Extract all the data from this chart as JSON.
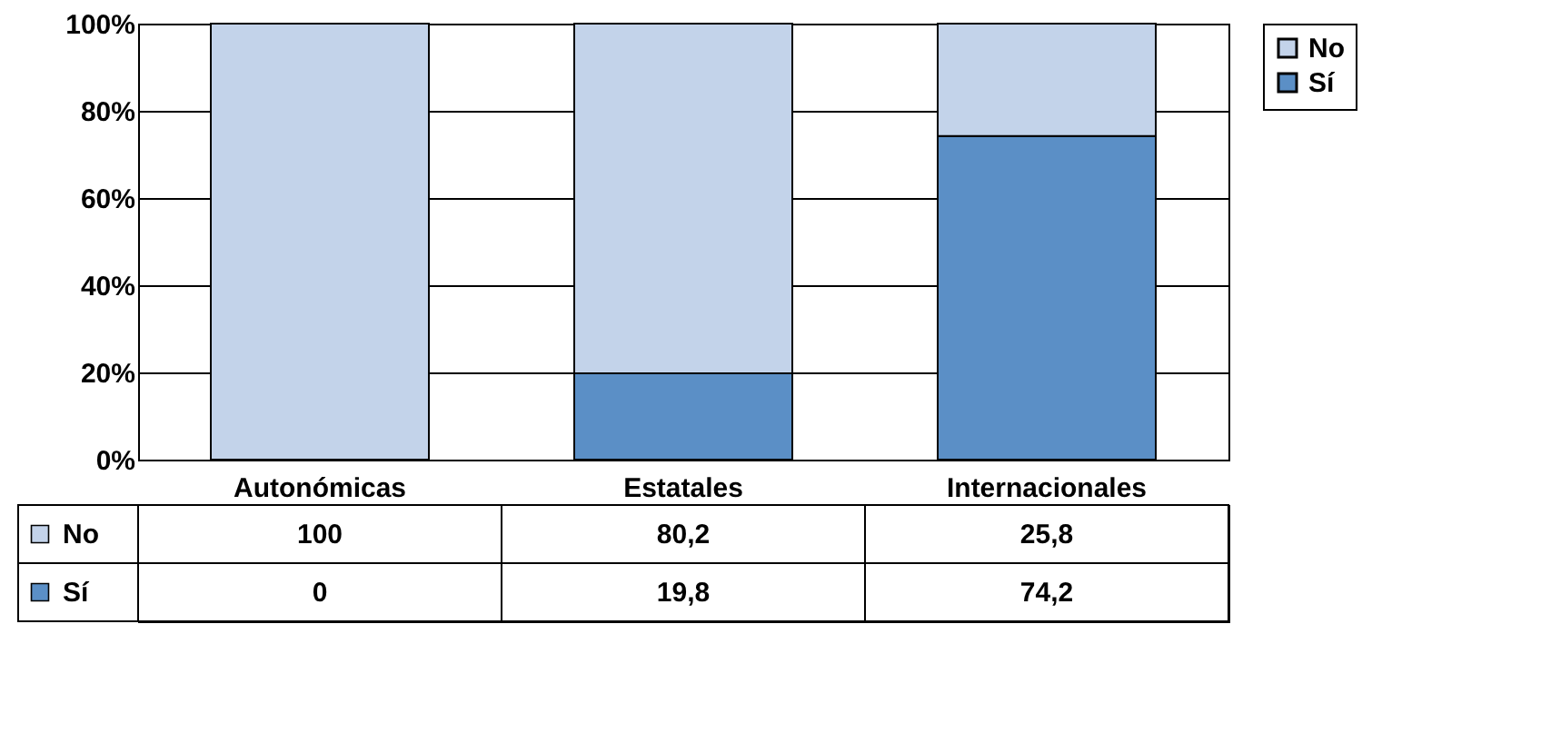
{
  "chart_data": {
    "type": "bar",
    "stacked": true,
    "categories": [
      "Autonómicas",
      "Estatales",
      "Internacionales"
    ],
    "series": [
      {
        "name": "Sí",
        "color": "#5b8fc6",
        "values": [
          0,
          19.8,
          74.2
        ],
        "value_labels": [
          "0",
          "19,8",
          "74,2"
        ]
      },
      {
        "name": "No",
        "color": "#c3d3ea",
        "values": [
          100,
          80.2,
          25.8
        ],
        "value_labels": [
          "100",
          "80,2",
          "25,8"
        ]
      }
    ],
    "ylim": [
      0,
      100
    ],
    "yticks": [
      {
        "value": 0,
        "label": "0%"
      },
      {
        "value": 20,
        "label": "20%"
      },
      {
        "value": 40,
        "label": "40%"
      },
      {
        "value": 60,
        "label": "60%"
      },
      {
        "value": 80,
        "label": "80%"
      },
      {
        "value": 100,
        "label": "100%"
      }
    ],
    "grid": "y",
    "legend": "right"
  }
}
